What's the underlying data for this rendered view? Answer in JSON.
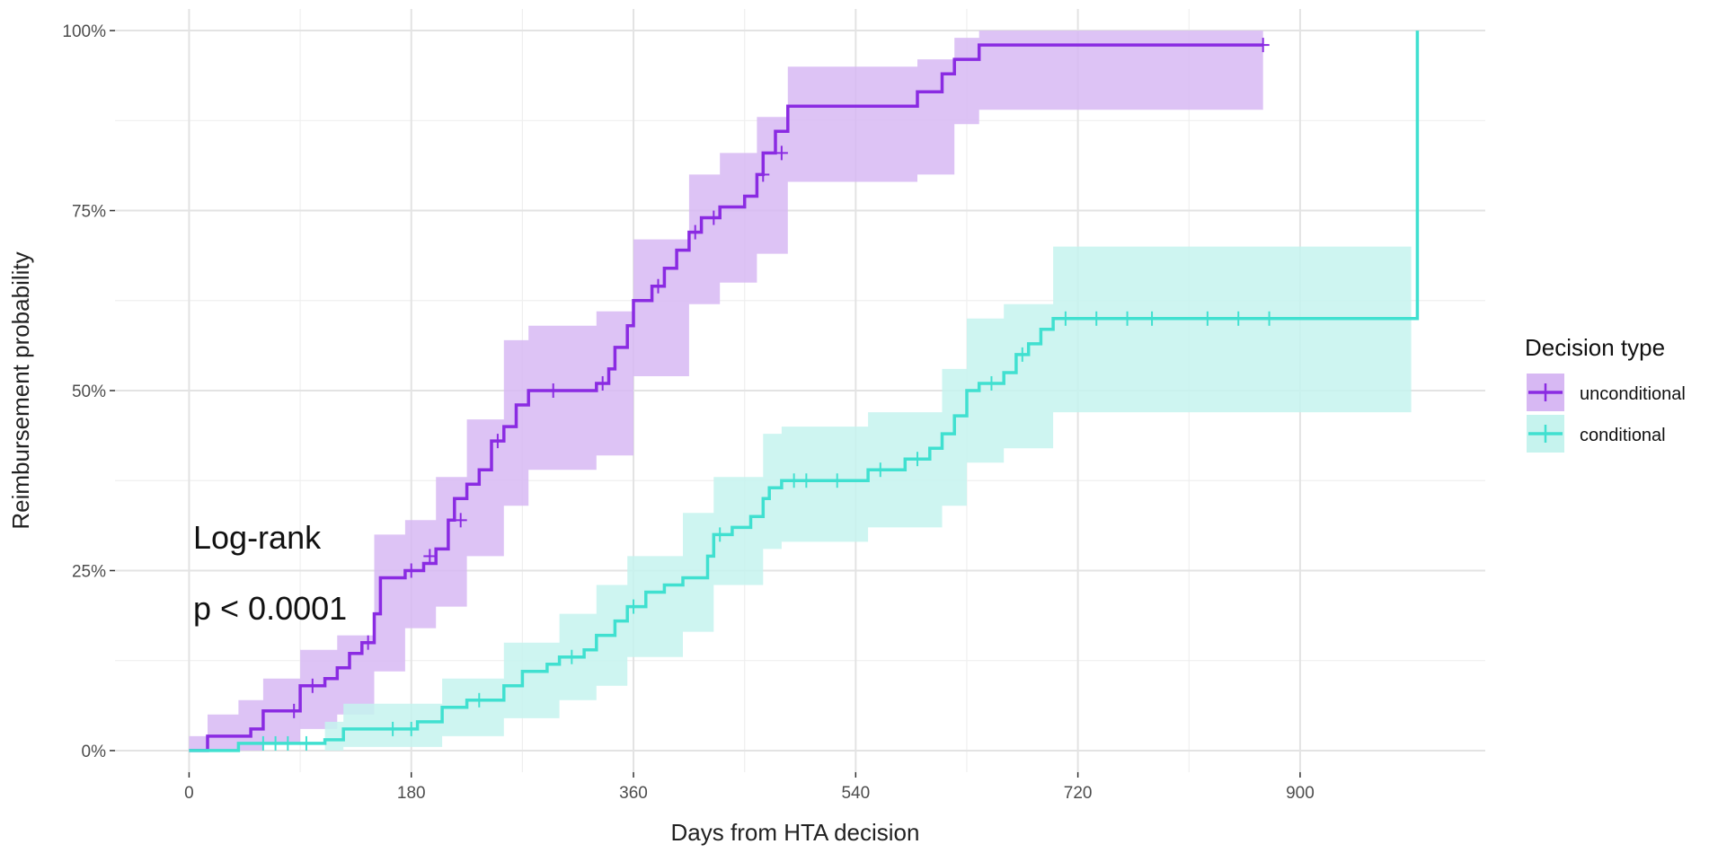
{
  "chart_data": {
    "type": "line",
    "xlabel": "Days from HTA decision",
    "ylabel": "Reimbursement probability",
    "xlim": [
      -60,
      1050
    ],
    "ylim": [
      -0.03,
      1.03
    ],
    "x_ticks": [
      0,
      180,
      360,
      540,
      720,
      900
    ],
    "x_tick_labels": [
      "0",
      "180",
      "360",
      "540",
      "720",
      "900"
    ],
    "y_ticks": [
      0,
      0.25,
      0.5,
      0.75,
      1.0
    ],
    "y_tick_labels": [
      "0%",
      "25%",
      "50%",
      "75%",
      "100%"
    ],
    "grid": true,
    "legend": {
      "title": "Decision type",
      "placement": "right",
      "entries": [
        "unconditional",
        "conditional"
      ]
    },
    "annotations": [
      "Log-rank",
      "p < 0.0001"
    ],
    "series": [
      {
        "name": "unconditional",
        "color": "#8a2be2",
        "ribbon_color": "#d7b8f3",
        "steps": [
          [
            0,
            0
          ],
          [
            15,
            0.02
          ],
          [
            40,
            0.02
          ],
          [
            50,
            0.03
          ],
          [
            60,
            0.055
          ],
          [
            85,
            0.055
          ],
          [
            90,
            0.09
          ],
          [
            110,
            0.1
          ],
          [
            120,
            0.115
          ],
          [
            130,
            0.135
          ],
          [
            140,
            0.15
          ],
          [
            150,
            0.19
          ],
          [
            155,
            0.24
          ],
          [
            175,
            0.25
          ],
          [
            190,
            0.26
          ],
          [
            200,
            0.28
          ],
          [
            210,
            0.32
          ],
          [
            215,
            0.35
          ],
          [
            225,
            0.37
          ],
          [
            235,
            0.39
          ],
          [
            245,
            0.43
          ],
          [
            255,
            0.45
          ],
          [
            265,
            0.48
          ],
          [
            275,
            0.5
          ],
          [
            330,
            0.51
          ],
          [
            340,
            0.53
          ],
          [
            345,
            0.56
          ],
          [
            355,
            0.59
          ],
          [
            360,
            0.625
          ],
          [
            375,
            0.645
          ],
          [
            385,
            0.67
          ],
          [
            395,
            0.695
          ],
          [
            405,
            0.72
          ],
          [
            415,
            0.74
          ],
          [
            430,
            0.755
          ],
          [
            450,
            0.77
          ],
          [
            460,
            0.8
          ],
          [
            465,
            0.83
          ],
          [
            475,
            0.86
          ],
          [
            485,
            0.895
          ],
          [
            590,
            0.915
          ],
          [
            610,
            0.94
          ],
          [
            620,
            0.96
          ],
          [
            640,
            0.98
          ],
          [
            870,
            0.98
          ]
        ],
        "ci_lower": [
          [
            0,
            0
          ],
          [
            15,
            0
          ],
          [
            40,
            0
          ],
          [
            60,
            0.01
          ],
          [
            90,
            0.03
          ],
          [
            120,
            0.05
          ],
          [
            150,
            0.11
          ],
          [
            175,
            0.17
          ],
          [
            200,
            0.2
          ],
          [
            225,
            0.27
          ],
          [
            255,
            0.34
          ],
          [
            275,
            0.39
          ],
          [
            330,
            0.41
          ],
          [
            360,
            0.52
          ],
          [
            405,
            0.62
          ],
          [
            430,
            0.65
          ],
          [
            460,
            0.69
          ],
          [
            485,
            0.79
          ],
          [
            590,
            0.8
          ],
          [
            620,
            0.87
          ],
          [
            640,
            0.89
          ],
          [
            870,
            0.89
          ]
        ],
        "ci_upper": [
          [
            0,
            0.02
          ],
          [
            15,
            0.05
          ],
          [
            40,
            0.07
          ],
          [
            60,
            0.1
          ],
          [
            90,
            0.14
          ],
          [
            120,
            0.16
          ],
          [
            150,
            0.3
          ],
          [
            175,
            0.32
          ],
          [
            200,
            0.38
          ],
          [
            225,
            0.46
          ],
          [
            255,
            0.57
          ],
          [
            275,
            0.59
          ],
          [
            330,
            0.61
          ],
          [
            360,
            0.71
          ],
          [
            405,
            0.8
          ],
          [
            430,
            0.83
          ],
          [
            460,
            0.88
          ],
          [
            485,
            0.95
          ],
          [
            590,
            0.96
          ],
          [
            620,
            0.99
          ],
          [
            640,
            1.0
          ],
          [
            870,
            1.0
          ]
        ],
        "censored": [
          [
            85,
            0.055
          ],
          [
            100,
            0.09
          ],
          [
            145,
            0.15
          ],
          [
            180,
            0.25
          ],
          [
            195,
            0.27
          ],
          [
            220,
            0.32
          ],
          [
            250,
            0.43
          ],
          [
            295,
            0.5
          ],
          [
            335,
            0.51
          ],
          [
            380,
            0.645
          ],
          [
            410,
            0.72
          ],
          [
            425,
            0.74
          ],
          [
            465,
            0.8
          ],
          [
            480,
            0.83
          ],
          [
            870,
            0.98
          ]
        ]
      },
      {
        "name": "conditional",
        "color": "#40e0d0",
        "ribbon_color": "#c6f3ee",
        "steps": [
          [
            0,
            0
          ],
          [
            35,
            0
          ],
          [
            40,
            0.01
          ],
          [
            110,
            0.015
          ],
          [
            125,
            0.03
          ],
          [
            185,
            0.04
          ],
          [
            205,
            0.06
          ],
          [
            225,
            0.07
          ],
          [
            255,
            0.09
          ],
          [
            270,
            0.11
          ],
          [
            290,
            0.12
          ],
          [
            300,
            0.13
          ],
          [
            320,
            0.14
          ],
          [
            330,
            0.16
          ],
          [
            345,
            0.18
          ],
          [
            355,
            0.2
          ],
          [
            370,
            0.22
          ],
          [
            385,
            0.23
          ],
          [
            400,
            0.24
          ],
          [
            420,
            0.27
          ],
          [
            425,
            0.3
          ],
          [
            440,
            0.31
          ],
          [
            455,
            0.325
          ],
          [
            465,
            0.35
          ],
          [
            470,
            0.365
          ],
          [
            480,
            0.375
          ],
          [
            550,
            0.39
          ],
          [
            580,
            0.405
          ],
          [
            600,
            0.42
          ],
          [
            610,
            0.44
          ],
          [
            620,
            0.465
          ],
          [
            630,
            0.5
          ],
          [
            640,
            0.51
          ],
          [
            660,
            0.525
          ],
          [
            670,
            0.55
          ],
          [
            680,
            0.565
          ],
          [
            690,
            0.585
          ],
          [
            700,
            0.6
          ],
          [
            995,
            0.6
          ],
          [
            995,
            1.0
          ]
        ],
        "ci_lower": [
          [
            0,
            0
          ],
          [
            110,
            0
          ],
          [
            125,
            0.005
          ],
          [
            205,
            0.02
          ],
          [
            255,
            0.045
          ],
          [
            300,
            0.07
          ],
          [
            330,
            0.09
          ],
          [
            355,
            0.13
          ],
          [
            400,
            0.165
          ],
          [
            425,
            0.23
          ],
          [
            465,
            0.28
          ],
          [
            480,
            0.29
          ],
          [
            550,
            0.31
          ],
          [
            610,
            0.34
          ],
          [
            630,
            0.4
          ],
          [
            660,
            0.42
          ],
          [
            700,
            0.47
          ],
          [
            990,
            0.47
          ]
        ],
        "ci_upper": [
          [
            0,
            0
          ],
          [
            110,
            0.04
          ],
          [
            125,
            0.065
          ],
          [
            205,
            0.1
          ],
          [
            255,
            0.15
          ],
          [
            300,
            0.19
          ],
          [
            330,
            0.23
          ],
          [
            355,
            0.27
          ],
          [
            400,
            0.33
          ],
          [
            425,
            0.38
          ],
          [
            465,
            0.44
          ],
          [
            480,
            0.45
          ],
          [
            550,
            0.47
          ],
          [
            610,
            0.53
          ],
          [
            630,
            0.6
          ],
          [
            660,
            0.62
          ],
          [
            700,
            0.7
          ],
          [
            990,
            0.7
          ]
        ],
        "censored": [
          [
            60,
            0.01
          ],
          [
            70,
            0.01
          ],
          [
            80,
            0.01
          ],
          [
            95,
            0.01
          ],
          [
            165,
            0.03
          ],
          [
            180,
            0.03
          ],
          [
            235,
            0.07
          ],
          [
            310,
            0.13
          ],
          [
            360,
            0.2
          ],
          [
            430,
            0.3
          ],
          [
            490,
            0.375
          ],
          [
            500,
            0.375
          ],
          [
            525,
            0.375
          ],
          [
            560,
            0.39
          ],
          [
            590,
            0.405
          ],
          [
            650,
            0.51
          ],
          [
            675,
            0.55
          ],
          [
            710,
            0.6
          ],
          [
            735,
            0.6
          ],
          [
            760,
            0.6
          ],
          [
            780,
            0.6
          ],
          [
            825,
            0.6
          ],
          [
            850,
            0.6
          ],
          [
            875,
            0.6
          ]
        ]
      }
    ]
  }
}
